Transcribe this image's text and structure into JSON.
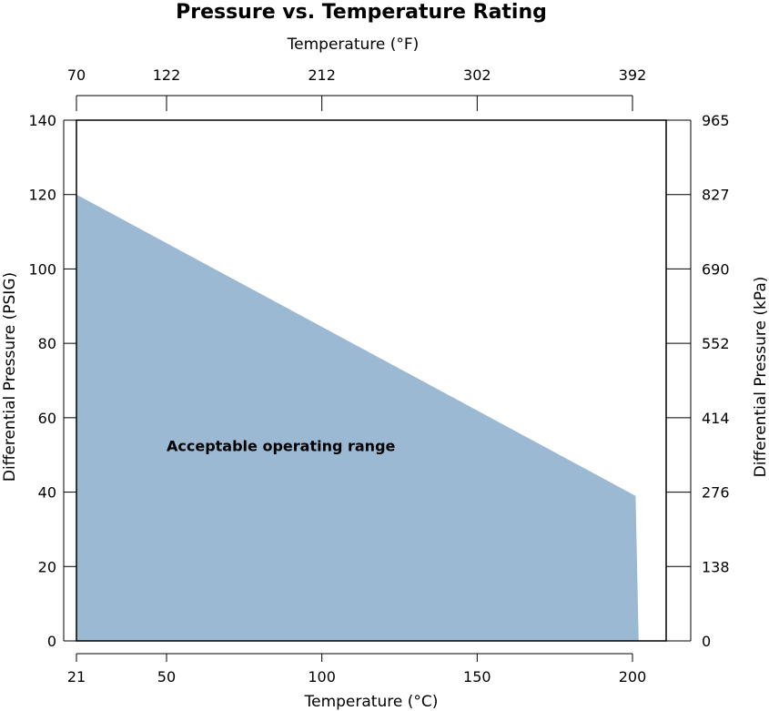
{
  "chart_data": {
    "type": "area",
    "title": "Pressure vs. Temperature Rating",
    "xlabel": "Temperature (°C)",
    "x2label": "Temperature (°F)",
    "ylabel": "Differential Pressure (PSIG)",
    "y2label": "Differential Pressure (kPa)",
    "xlim": [
      21,
      210
    ],
    "ylim": [
      0,
      140
    ],
    "grid": false,
    "x_ticks": [
      21,
      50,
      100,
      150,
      200
    ],
    "x_tick_labels": [
      "21",
      "50",
      "100",
      "150",
      "200"
    ],
    "x2_tick_labels": [
      "70",
      "122",
      "212",
      "302",
      "392"
    ],
    "y_ticks": [
      0,
      20,
      40,
      60,
      80,
      100,
      120,
      140
    ],
    "y_tick_labels": [
      "0",
      "20",
      "40",
      "60",
      "80",
      "100",
      "120",
      "140"
    ],
    "y2_tick_labels": [
      "0",
      "138",
      "276",
      "414",
      "552",
      "690",
      "827",
      "965"
    ],
    "fill_color": "#9BB9D3",
    "series": [
      {
        "x": [
          21,
          201,
          202,
          21
        ],
        "y": [
          120,
          39,
          0,
          0
        ]
      }
    ],
    "annotations": [
      {
        "text": "Acceptable operating range",
        "x": 50,
        "y": 51
      }
    ]
  }
}
